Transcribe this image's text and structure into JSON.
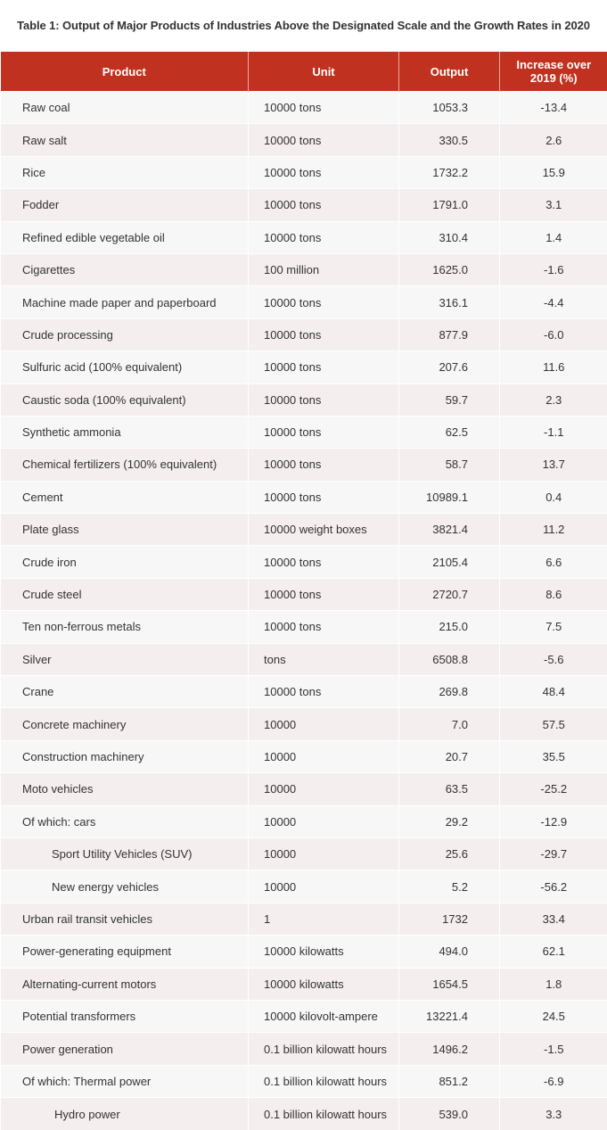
{
  "title": "Table 1: Output of Major Products of Industries Above the Designated Scale and the Growth Rates in 2020",
  "colors": {
    "header_bg": "#c0321f",
    "row_odd": "#f7f7f7",
    "row_even": "#f4eeee"
  },
  "columns": [
    "Product",
    "Unit",
    "Output",
    "Increase over 2019 (%)"
  ],
  "rows": [
    {
      "product": "Raw coal",
      "unit": "10000 tons",
      "output": "1053.3",
      "increase": "-13.4"
    },
    {
      "product": "Raw salt",
      "unit": "10000 tons",
      "output": "330.5",
      "increase": "2.6"
    },
    {
      "product": "Rice",
      "unit": "10000 tons",
      "output": "1732.2",
      "increase": "15.9"
    },
    {
      "product": "Fodder",
      "unit": "10000 tons",
      "output": "1791.0",
      "increase": "3.1"
    },
    {
      "product": "Refined edible vegetable oil",
      "unit": "10000 tons",
      "output": "310.4",
      "increase": "1.4"
    },
    {
      "product": "Cigarettes",
      "unit": "100 million",
      "output": "1625.0",
      "increase": "-1.6"
    },
    {
      "product": "Machine made paper and paperboard",
      "unit": "10000 tons",
      "output": "316.1",
      "increase": "-4.4"
    },
    {
      "product": "Crude processing",
      "unit": "10000 tons",
      "output": "877.9",
      "increase": "-6.0"
    },
    {
      "product": "Sulfuric acid (100% equivalent)",
      "unit": "10000 tons",
      "output": "207.6",
      "increase": "11.6"
    },
    {
      "product": "Caustic soda (100% equivalent)",
      "unit": "10000 tons",
      "output": "59.7",
      "increase": "2.3"
    },
    {
      "product": "Synthetic ammonia",
      "unit": "10000 tons",
      "output": "62.5",
      "increase": "-1.1"
    },
    {
      "product": "Chemical fertilizers (100% equivalent)",
      "unit": "10000 tons",
      "output": "58.7",
      "increase": "13.7"
    },
    {
      "product": "Cement",
      "unit": "10000 tons",
      "output": "10989.1",
      "increase": "0.4"
    },
    {
      "product": "Plate glass",
      "unit": "10000 weight boxes",
      "output": "3821.4",
      "increase": "11.2"
    },
    {
      "product": "Crude iron",
      "unit": "10000 tons",
      "output": "2105.4",
      "increase": "6.6"
    },
    {
      "product": "Crude steel",
      "unit": "10000 tons",
      "output": "2720.7",
      "increase": "8.6"
    },
    {
      "product": "Ten non-ferrous metals",
      "unit": "10000 tons",
      "output": "215.0",
      "increase": "7.5"
    },
    {
      "product": "Silver",
      "unit": "tons",
      "output": "6508.8",
      "increase": "-5.6"
    },
    {
      "product": "Crane",
      "unit": "10000 tons",
      "output": "269.8",
      "increase": "48.4"
    },
    {
      "product": "Concrete machinery",
      "unit": "10000",
      "output": "7.0",
      "increase": "57.5"
    },
    {
      "product": "Construction machinery",
      "unit": "10000",
      "output": "20.7",
      "increase": "35.5"
    },
    {
      "product": "Moto vehicles",
      "unit": "10000",
      "output": "63.5",
      "increase": "-25.2"
    },
    {
      "product": "Of which: cars",
      "unit": "10000",
      "output": "29.2",
      "increase": "-12.9"
    },
    {
      "product": "Sport Utility Vehicles (SUV)",
      "unit": "10000",
      "output": "25.6",
      "increase": "-29.7",
      "indent": 1
    },
    {
      "product": "New energy vehicles",
      "unit": "10000",
      "output": "5.2",
      "increase": "-56.2",
      "indent": 1
    },
    {
      "product": "Urban rail transit vehicles",
      "unit": "1",
      "output": "1732",
      "increase": "33.4"
    },
    {
      "product": "Power-generating equipment",
      "unit": "10000 kilowatts",
      "output": "494.0",
      "increase": "62.1"
    },
    {
      "product": "Alternating-current motors",
      "unit": "10000 kilowatts",
      "output": "1654.5",
      "increase": "1.8"
    },
    {
      "product": "Potential transformers",
      "unit": "10000 kilovolt-ampere",
      "output": "13221.4",
      "increase": "24.5"
    },
    {
      "product": "Power generation",
      "unit": "0.1 billion kilowatt hours",
      "output": "1496.2",
      "increase": "-1.5"
    },
    {
      "product": "Of which: Thermal power",
      "unit": "0.1 billion kilowatt hours",
      "output": "851.2",
      "increase": "-6.9"
    },
    {
      "product": "Hydro power",
      "unit": "0.1 billion kilowatt hours",
      "output": "539.0",
      "increase": "3.3",
      "indent": 2
    }
  ]
}
